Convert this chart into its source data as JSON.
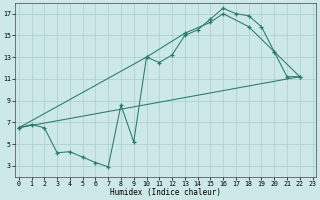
{
  "line1_x": [
    0,
    1,
    2,
    3,
    4,
    5,
    6,
    7,
    8,
    9,
    10,
    11,
    12,
    13,
    14,
    15,
    16,
    17,
    18,
    19,
    20,
    21,
    22
  ],
  "line1_y": [
    6.5,
    6.8,
    6.5,
    4.2,
    4.3,
    3.8,
    3.3,
    2.9,
    8.6,
    5.2,
    13.0,
    12.5,
    13.2,
    15.0,
    15.5,
    16.5,
    17.5,
    17.0,
    16.8,
    15.8,
    13.5,
    11.2,
    11.2
  ],
  "line2_x": [
    0,
    10,
    13,
    15,
    16,
    18,
    20,
    22
  ],
  "line2_y": [
    6.5,
    13.0,
    15.2,
    16.2,
    17.0,
    15.8,
    13.5,
    11.2
  ],
  "line3_x": [
    0,
    22
  ],
  "line3_y": [
    6.5,
    11.2
  ],
  "line_color": "#2a7a6a",
  "bg_color": "#cce8e8",
  "grid_color": "#aacece",
  "xlabel": "Humidex (Indice chaleur)",
  "xlim": [
    -0.3,
    23.3
  ],
  "ylim": [
    2,
    18
  ],
  "yticks": [
    3,
    5,
    7,
    9,
    11,
    13,
    15,
    17
  ],
  "xticks": [
    0,
    1,
    2,
    3,
    4,
    5,
    6,
    7,
    8,
    9,
    10,
    11,
    12,
    13,
    14,
    15,
    16,
    17,
    18,
    19,
    20,
    21,
    22,
    23
  ]
}
